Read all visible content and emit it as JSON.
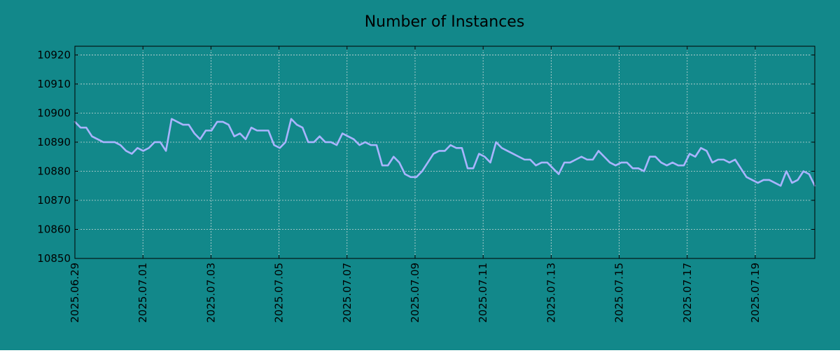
{
  "colors": {
    "background": "#12888a",
    "line": "#a9b4ff",
    "grid": "#c8d8d8",
    "axis": "#000000"
  },
  "chart_data": {
    "type": "line",
    "title": "Number of Instances",
    "xlabel": "",
    "ylabel": "",
    "grid": true,
    "legend": "none",
    "ylim": [
      10850,
      10923
    ],
    "xlim": [
      "2025.06.29",
      "2025.07.20 18:00"
    ],
    "yticks": [
      10850,
      10860,
      10870,
      10880,
      10890,
      10900,
      10910,
      10920
    ],
    "xticks": [
      "2025.06.29",
      "2025.07.01",
      "2025.07.03",
      "2025.07.05",
      "2025.07.07",
      "2025.07.09",
      "2025.07.11",
      "2025.07.13",
      "2025.07.15",
      "2025.07.17",
      "2025.07.19"
    ],
    "series": [
      {
        "values": [
          10897,
          10895,
          10895,
          10892,
          10891,
          10890,
          10890,
          10890,
          10889,
          10887,
          10886,
          10888,
          10887,
          10888,
          10890,
          10890,
          10887,
          10898,
          10897,
          10896,
          10896,
          10893,
          10891,
          10894,
          10894,
          10897,
          10897,
          10896,
          10892,
          10893,
          10891,
          10895,
          10894,
          10894,
          10894,
          10889,
          10888,
          10890,
          10898,
          10896,
          10895,
          10890,
          10890,
          10892,
          10890,
          10890,
          10889,
          10893,
          10892,
          10891,
          10889,
          10890,
          10889,
          10889,
          10882,
          10882,
          10885,
          10883,
          10879,
          10878,
          10878,
          10880,
          10883,
          10886,
          10887,
          10887,
          10889,
          10888,
          10888,
          10881,
          10881,
          10886,
          10885,
          10883,
          10890,
          10888,
          10887,
          10886,
          10885,
          10884,
          10884,
          10882,
          10883,
          10883,
          10881,
          10879,
          10883,
          10883,
          10884,
          10885,
          10884,
          10884,
          10887,
          10885,
          10883,
          10882,
          10883,
          10883,
          10881,
          10881,
          10880,
          10885,
          10885,
          10883,
          10882,
          10883,
          10882,
          10882,
          10886,
          10885,
          10888,
          10887,
          10883,
          10884,
          10884,
          10883,
          10884,
          10881,
          10878,
          10877,
          10876,
          10877,
          10877,
          10876,
          10875,
          10880,
          10876,
          10877,
          10880,
          10879,
          10875
        ]
      }
    ]
  }
}
